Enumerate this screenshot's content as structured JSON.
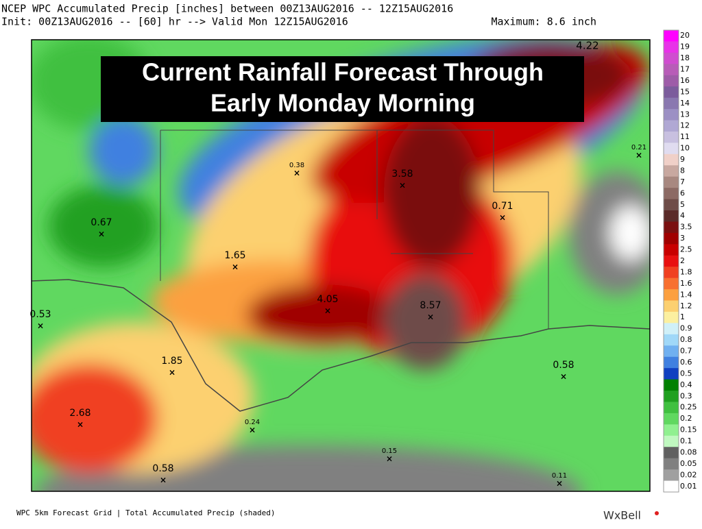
{
  "header": {
    "line1": "NCEP WPC Accumulated Precip [inches] between 00Z13AUG2016 -- 12Z15AUG2016",
    "init": "Init: 00Z13AUG2016 -- [60] hr --> Valid Mon 12Z15AUG2016",
    "maximum": "Maximum: 8.6 inch"
  },
  "overlay_title": [
    "Current Rainfall Forecast Through",
    "Early Monday Morning"
  ],
  "points": [
    "4.22",
    "0.21",
    "3.58",
    "0.38",
    "0.71",
    "0.67",
    "1.65",
    "4.05",
    "8.57",
    "0.53",
    "1.85",
    "0.58",
    "2.68",
    "0.24",
    "0.15",
    "0.58",
    "0.11"
  ],
  "legend": {
    "levels": [
      "20",
      "19",
      "18",
      "17",
      "16",
      "15",
      "14",
      "13",
      "12",
      "11",
      "10",
      "9",
      "8",
      "7",
      "6",
      "5",
      "4",
      "3.5",
      "3",
      "2.5",
      "2",
      "1.8",
      "1.6",
      "1.4",
      "1.2",
      "1",
      "0.9",
      "0.8",
      "0.7",
      "0.6",
      "0.5",
      "0.4",
      "0.3",
      "0.25",
      "0.2",
      "0.15",
      "0.1",
      "0.08",
      "0.05",
      "0.02",
      "0.01"
    ],
    "colors": [
      "#ff00ff",
      "#e832e8",
      "#d04cd0",
      "#b85cb8",
      "#9e5ca8",
      "#7c5c9c",
      "#8a78b0",
      "#9c90c4",
      "#b0a8d4",
      "#c8c0e0",
      "#e0dcf0",
      "#f0d0c8",
      "#c8a8a0",
      "#a88880",
      "#8c6a64",
      "#6e4c48",
      "#5a2a28",
      "#7a1010",
      "#a00000",
      "#c80000",
      "#e81010",
      "#f04020",
      "#f87030",
      "#fca040",
      "#fcd070",
      "#fcf0a0",
      "#d0f0f8",
      "#a0d8f8",
      "#70b0f0",
      "#4080e0",
      "#1040c0",
      "#008000",
      "#20a020",
      "#40c040",
      "#60d860",
      "#90f090",
      "#c0f8c0",
      "#606060",
      "#808080",
      "#a0a0a0",
      "#ffffff"
    ]
  },
  "footer": {
    "left": "WPC 5km Forecast Grid | Total Accumulated Precip (shaded)",
    "brand": "WxBell"
  }
}
